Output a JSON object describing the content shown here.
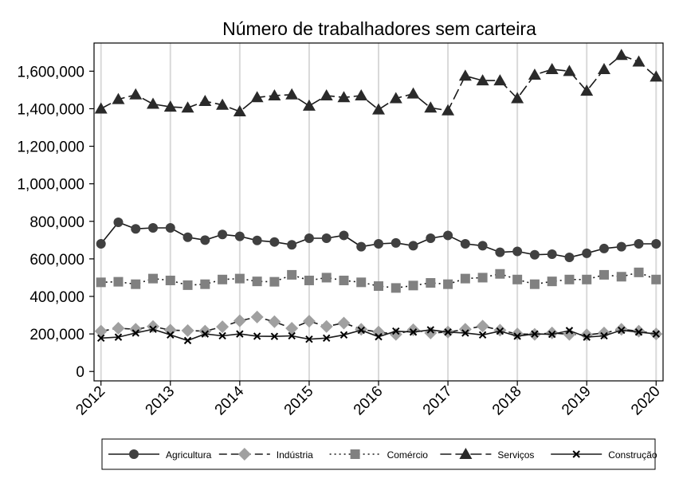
{
  "chart_data": {
    "type": "line",
    "title": "Número de trabalhadores sem carteira",
    "xlabel": "",
    "ylabel": "",
    "xlim": [
      2011.9,
      2020.1
    ],
    "ylim": [
      -50000,
      1750000
    ],
    "x_ticks": [
      2012,
      2013,
      2014,
      2015,
      2016,
      2017,
      2018,
      2019,
      2020
    ],
    "x_tick_labels": [
      "2012",
      "2013",
      "2014",
      "2015",
      "2016",
      "2017",
      "2018",
      "2019",
      "2020"
    ],
    "y_ticks": [
      0,
      200000,
      400000,
      600000,
      800000,
      1000000,
      1200000,
      1400000,
      1600000
    ],
    "y_tick_labels": [
      "0",
      "200,000",
      "400,000",
      "600,000",
      "800,000",
      "1,000,000",
      "1,200,000",
      "1,400,000",
      "1,600,000"
    ],
    "grid": "vertical",
    "legend_position": "bottom",
    "x": [
      2012.0,
      2012.25,
      2012.5,
      2012.75,
      2013.0,
      2013.25,
      2013.5,
      2013.75,
      2014.0,
      2014.25,
      2014.5,
      2014.75,
      2015.0,
      2015.25,
      2015.5,
      2015.75,
      2016.0,
      2016.25,
      2016.5,
      2016.75,
      2017.0,
      2017.25,
      2017.5,
      2017.75,
      2018.0,
      2018.25,
      2018.5,
      2018.75,
      2019.0,
      2019.25,
      2019.5,
      2019.75,
      2020.0
    ],
    "series": [
      {
        "name": "Agricultura",
        "marker": "circle",
        "dash": "solid",
        "color": "#404040",
        "values": [
          680000,
          795000,
          760000,
          765000,
          765000,
          715000,
          700000,
          730000,
          720000,
          698000,
          690000,
          675000,
          710000,
          710000,
          725000,
          665000,
          680000,
          685000,
          670000,
          710000,
          725000,
          680000,
          670000,
          635000,
          640000,
          622000,
          625000,
          608000,
          630000,
          655000,
          665000,
          680000,
          680000
        ]
      },
      {
        "name": "Indústria",
        "marker": "diamond",
        "dash": "dashed",
        "color": "#a0a0a0",
        "values": [
          215000,
          230000,
          225000,
          240000,
          220000,
          218000,
          215000,
          238000,
          270000,
          290000,
          265000,
          230000,
          268000,
          240000,
          258000,
          225000,
          210000,
          198000,
          222000,
          205000,
          210000,
          225000,
          242000,
          220000,
          200000,
          198000,
          205000,
          198000,
          195000,
          205000,
          225000,
          215000,
          200000
        ]
      },
      {
        "name": "Comércio",
        "marker": "square",
        "dash": "dotted",
        "color": "#808080",
        "values": [
          475000,
          478000,
          465000,
          495000,
          485000,
          460000,
          465000,
          490000,
          495000,
          480000,
          478000,
          515000,
          485000,
          500000,
          485000,
          475000,
          455000,
          445000,
          458000,
          472000,
          465000,
          495000,
          500000,
          520000,
          490000,
          465000,
          480000,
          490000,
          490000,
          515000,
          505000,
          528000,
          490000
        ]
      },
      {
        "name": "Serviços",
        "marker": "triangle",
        "dash": "longdash",
        "color": "#2a2a2a",
        "values": [
          1400000,
          1450000,
          1475000,
          1425000,
          1410000,
          1405000,
          1440000,
          1420000,
          1385000,
          1460000,
          1470000,
          1475000,
          1415000,
          1470000,
          1460000,
          1470000,
          1395000,
          1455000,
          1480000,
          1405000,
          1390000,
          1575000,
          1550000,
          1550000,
          1455000,
          1580000,
          1610000,
          1600000,
          1495000,
          1610000,
          1685000,
          1650000,
          1570000
        ]
      },
      {
        "name": "Construção",
        "marker": "x",
        "dash": "solid",
        "color": "#000000",
        "values": [
          178000,
          183000,
          205000,
          225000,
          195000,
          165000,
          200000,
          190000,
          200000,
          188000,
          187000,
          190000,
          172000,
          178000,
          195000,
          220000,
          185000,
          215000,
          210000,
          222000,
          210000,
          205000,
          195000,
          215000,
          188000,
          200000,
          198000,
          218000,
          183000,
          190000,
          220000,
          210000,
          200000
        ]
      }
    ]
  }
}
